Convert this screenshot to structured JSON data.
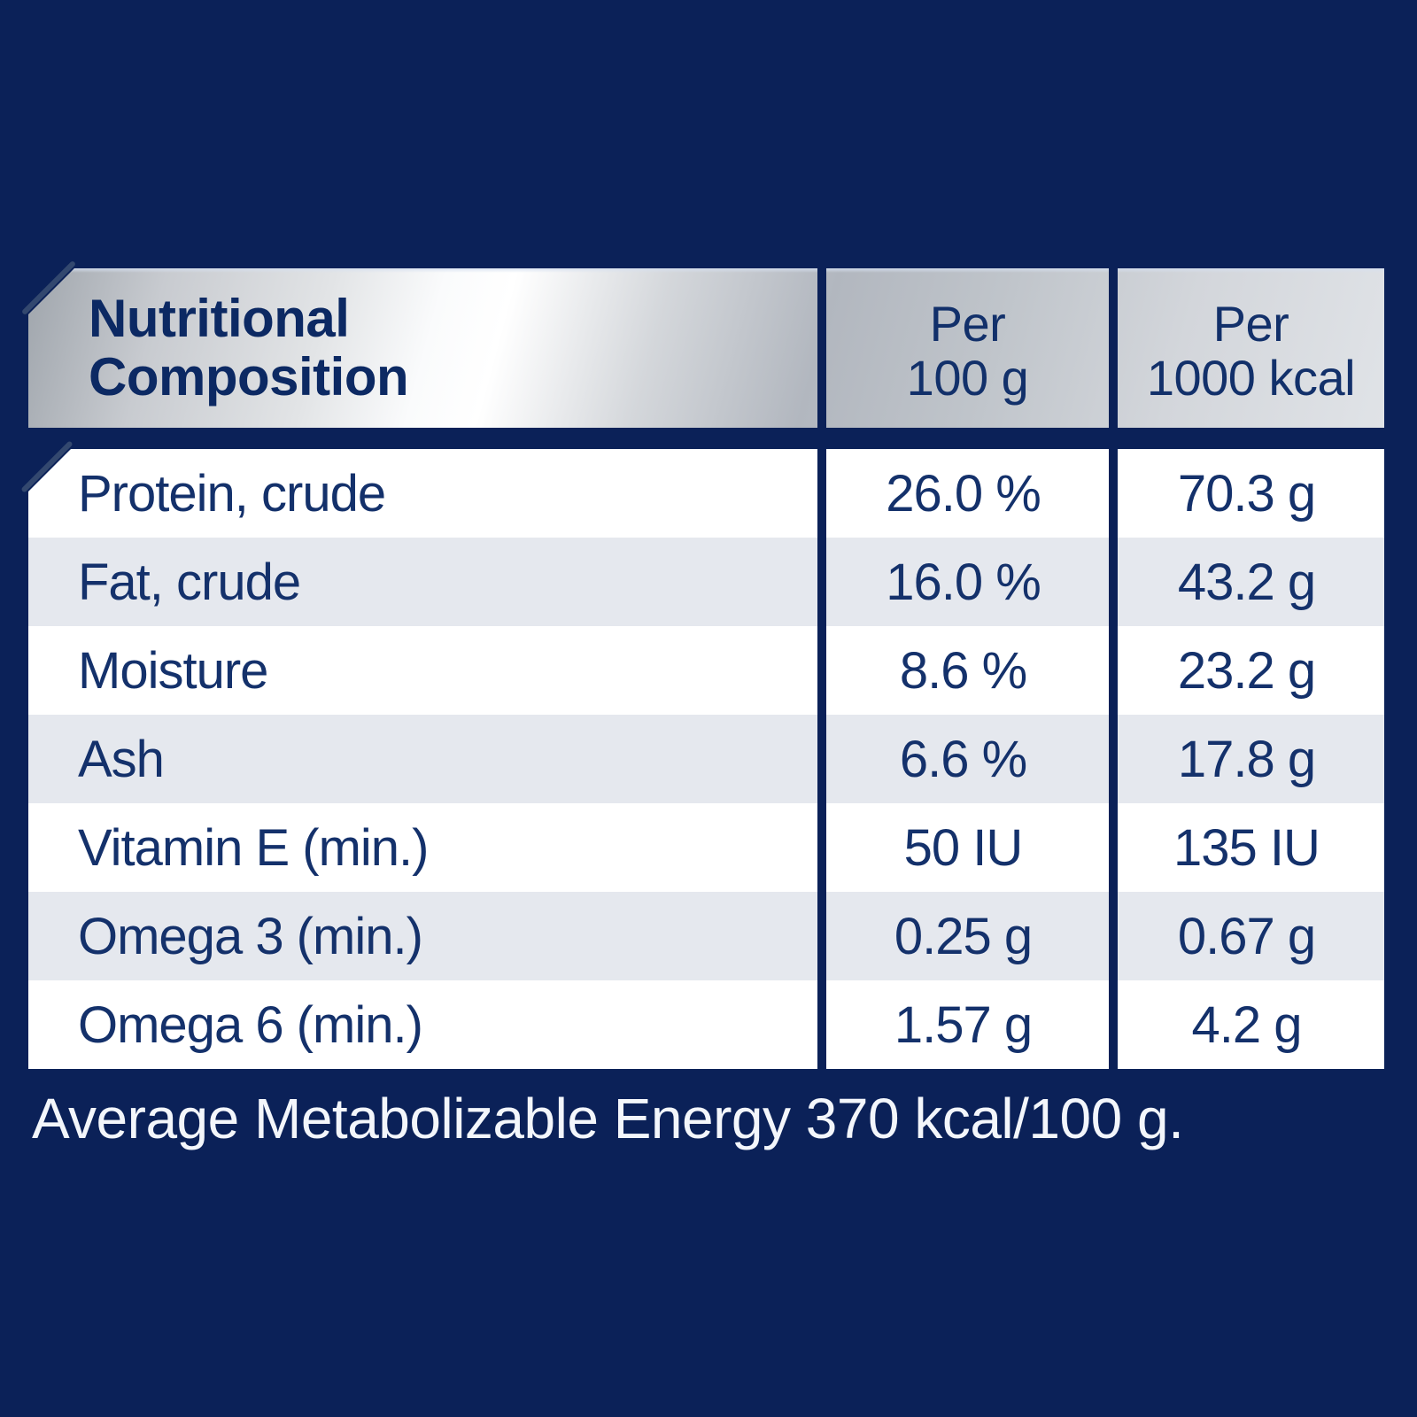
{
  "colors": {
    "background_navy": "#0B2158",
    "row_alt_gray": "#E5E8EE",
    "row_white": "#FFFFFF",
    "table_text_navy": "#14316B",
    "title_navy": "#0C2963",
    "footer_text_white": "#F3F6FB",
    "header_silver_light": "#FFFFFF",
    "header_silver_dark": "#9FA5AC"
  },
  "table": {
    "header": {
      "title_line1": "Nutritional",
      "title_line2": "Composition",
      "per100_line1": "Per",
      "per100_line2": "100 g",
      "per1000_line1": "Per",
      "per1000_line2": "1000 kcal"
    },
    "rows": [
      {
        "label": "Protein, crude",
        "per_100g": "26.0 %",
        "per_1000kcal": "70.3 g"
      },
      {
        "label": "Fat, crude",
        "per_100g": "16.0 %",
        "per_1000kcal": "43.2 g"
      },
      {
        "label": "Moisture",
        "per_100g": "8.6 %",
        "per_1000kcal": "23.2 g"
      },
      {
        "label": "Ash",
        "per_100g": "6.6 %",
        "per_1000kcal": "17.8 g"
      },
      {
        "label": "Vitamin E (min.)",
        "per_100g": "50 IU",
        "per_1000kcal": "135 IU"
      },
      {
        "label": "Omega 3 (min.)",
        "per_100g": "0.25 g",
        "per_1000kcal": "0.67 g"
      },
      {
        "label": "Omega 6 (min.)",
        "per_100g": "1.57 g",
        "per_1000kcal": "4.2 g"
      }
    ]
  },
  "footer": {
    "text": "Average Metabolizable Energy 370 kcal/100 g."
  }
}
